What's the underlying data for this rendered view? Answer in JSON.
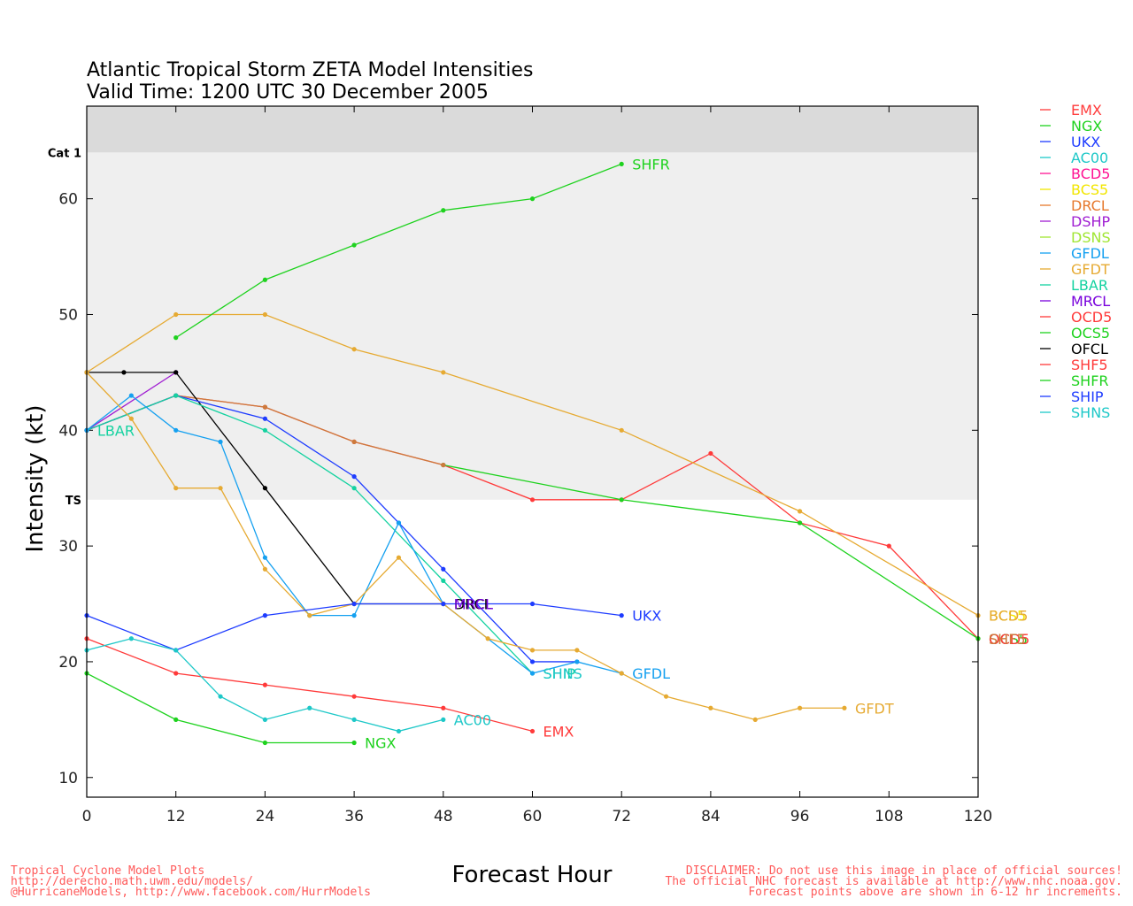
{
  "header": {
    "title": "Atlantic Tropical Storm ZETA Model Intensities",
    "subtitle": "Valid Time: 1200 UTC 30 December 2005"
  },
  "footer": {
    "left": [
      "Tropical Cyclone Model Plots",
      "http://derecho.math.uwm.edu/models/",
      "@HurricaneModels, http://www.facebook.com/HurrModels"
    ],
    "right": [
      "DISCLAIMER: Do not use this image in place of official sources!",
      "The official NHC forecast is available at http://www.nhc.noaa.gov.",
      "Forecast points above are shown in 6-12 hr increments."
    ]
  },
  "chart_data": {
    "type": "line",
    "xlabel": "Forecast Hour",
    "ylabel": "Intensity (kt)",
    "xlim": [
      0,
      120
    ],
    "ylim": [
      8.3,
      68
    ],
    "xticks": [
      0,
      12,
      24,
      36,
      48,
      60,
      72,
      84,
      96,
      108,
      120
    ],
    "yticks": [
      10,
      20,
      30,
      40,
      50,
      60
    ],
    "bands": [
      {
        "label": "TS",
        "from": 34,
        "to": 64,
        "color": "#efefef"
      },
      {
        "label": "Cat 1",
        "from": 64,
        "to": 68,
        "color": "#dadada"
      }
    ],
    "legend": [
      {
        "name": "EMX",
        "color": "#ff3a3a"
      },
      {
        "name": "NGX",
        "color": "#1ed21e"
      },
      {
        "name": "UKX",
        "color": "#1e3cff"
      },
      {
        "name": "AC00",
        "color": "#1ec8c8"
      },
      {
        "name": "BCD5",
        "color": "#ff1493"
      },
      {
        "name": "BCS5",
        "color": "#f2e600"
      },
      {
        "name": "DRCL",
        "color": "#e6782d"
      },
      {
        "name": "DSHP",
        "color": "#a01ed2"
      },
      {
        "name": "DSNS",
        "color": "#a0e632"
      },
      {
        "name": "GFDL",
        "color": "#14a0f0"
      },
      {
        "name": "GFDT",
        "color": "#e6aa32"
      },
      {
        "name": "LBAR",
        "color": "#14d2a0"
      },
      {
        "name": "MRCL",
        "color": "#7800dc"
      },
      {
        "name": "OCD5",
        "color": "#ff3a3a"
      },
      {
        "name": "OCS5",
        "color": "#1ed21e"
      },
      {
        "name": "OFCL",
        "color": "#000000"
      },
      {
        "name": "SHF5",
        "color": "#ff3a3a"
      },
      {
        "name": "SHFR",
        "color": "#1ed21e"
      },
      {
        "name": "SHIP",
        "color": "#1e3cff"
      },
      {
        "name": "SHNS",
        "color": "#1ec8c8"
      }
    ],
    "series": [
      {
        "name": "SHF5",
        "color": "#ff3a3a",
        "x": [
          0,
          12,
          24,
          36,
          48,
          60,
          72,
          84,
          96,
          108,
          120
        ],
        "y": [
          40,
          43,
          42,
          39,
          37,
          34,
          34,
          38,
          32,
          30,
          22
        ]
      },
      {
        "name": "OCS5",
        "color": "#1ed21e",
        "x": [
          48,
          72,
          96,
          120
        ],
        "y": [
          37,
          34,
          32,
          22
        ]
      },
      {
        "name": "DRCL",
        "color": "#cd7a3c",
        "x": [
          0,
          12,
          24,
          36,
          48
        ],
        "y": [
          40,
          43,
          42,
          39,
          37
        ]
      },
      {
        "name": "BCS5",
        "color": "#e6aa32",
        "x": [
          0,
          12,
          24,
          36,
          48,
          72,
          96,
          120
        ],
        "y": [
          45,
          50,
          50,
          47,
          45,
          40,
          33,
          24
        ]
      },
      {
        "name": "SHFR",
        "color": "#1ed21e",
        "x": [
          12,
          24,
          36,
          48,
          60,
          72
        ],
        "y": [
          48,
          53,
          56,
          59,
          60,
          63
        ],
        "label": "SHFR"
      },
      {
        "name": "DSHP",
        "color": "#a01ed2",
        "x": [
          0,
          12
        ],
        "y": [
          40,
          45
        ]
      },
      {
        "name": "OFCL",
        "color": "#000000",
        "x": [
          0,
          5,
          12,
          24,
          36,
          48
        ],
        "y": [
          45,
          45,
          45,
          35,
          25,
          25
        ],
        "label": "DRCL"
      },
      {
        "name": "SHIP",
        "color": "#1e3cff",
        "x": [
          0,
          12,
          24,
          36,
          42,
          48,
          60,
          66
        ],
        "y": [
          40,
          43,
          41,
          36,
          32,
          28,
          20,
          20
        ]
      },
      {
        "name": "LBAR",
        "color": "#14d2a0",
        "x": [
          0,
          12,
          24,
          36,
          48,
          60
        ],
        "y": [
          40,
          43,
          40,
          35,
          27,
          19
        ],
        "label": "SHIP"
      },
      {
        "name": "GFDL",
        "color": "#14a0f0",
        "x": [
          0,
          6,
          12,
          18,
          24,
          30,
          36,
          42,
          48,
          60,
          66,
          72
        ],
        "y": [
          40,
          43,
          40,
          39,
          29,
          24,
          24,
          32,
          25,
          19,
          20,
          19
        ],
        "label": "GFDL"
      },
      {
        "name": "GFDT",
        "color": "#e6aa32",
        "x": [
          0,
          6,
          12,
          18,
          24,
          30,
          36,
          42,
          48,
          54,
          60,
          66,
          72,
          78,
          84,
          90,
          96,
          102
        ],
        "y": [
          45,
          41,
          35,
          35,
          28,
          24,
          25,
          29,
          25,
          22,
          21,
          21,
          19,
          17,
          16,
          15,
          16,
          16
        ],
        "label": "GFDT"
      },
      {
        "name": "UKX",
        "color": "#1e3cff",
        "x": [
          0,
          12,
          24,
          36,
          48,
          60,
          72
        ],
        "y": [
          24,
          21,
          24,
          25,
          25,
          25,
          24
        ],
        "label": "UKX"
      },
      {
        "name": "EMX",
        "color": "#ff3a3a",
        "x": [
          0,
          12,
          24,
          36,
          48,
          60
        ],
        "y": [
          22,
          19,
          18,
          17,
          16,
          14
        ],
        "label": "EMX"
      },
      {
        "name": "AC00",
        "color": "#1ec8c8",
        "x": [
          0,
          6,
          12,
          18,
          24,
          30,
          36,
          42,
          48
        ],
        "y": [
          21,
          22,
          21,
          17,
          15,
          16,
          15,
          14,
          15
        ],
        "label": "AC00"
      },
      {
        "name": "NGX",
        "color": "#1ed21e",
        "x": [
          0,
          12,
          24,
          36
        ],
        "y": [
          19,
          15,
          13,
          13
        ],
        "label": "NGX"
      }
    ],
    "labels": [
      {
        "text": "LBAR",
        "x": 0,
        "y": 40,
        "color": "#14d2a0"
      },
      {
        "text": "MRCL",
        "x": 48,
        "y": 25,
        "color": "#7800dc"
      },
      {
        "text": "SHNS",
        "x": 60,
        "y": 19,
        "color": "#1ec8c8"
      },
      {
        "text": "BCS5",
        "x": 120,
        "y": 24,
        "color": "#f2e600"
      },
      {
        "text": "BCD5",
        "x": 120,
        "y": 24,
        "color": "#e6aa32"
      },
      {
        "text": "OCS5",
        "x": 120,
        "y": 22,
        "color": "#1ed21e"
      },
      {
        "text": "OCD5",
        "x": 120,
        "y": 22,
        "color": "#ff3a3a"
      },
      {
        "text": "SHF5",
        "x": 120,
        "y": 22,
        "color": "#cd7a3c"
      }
    ]
  }
}
